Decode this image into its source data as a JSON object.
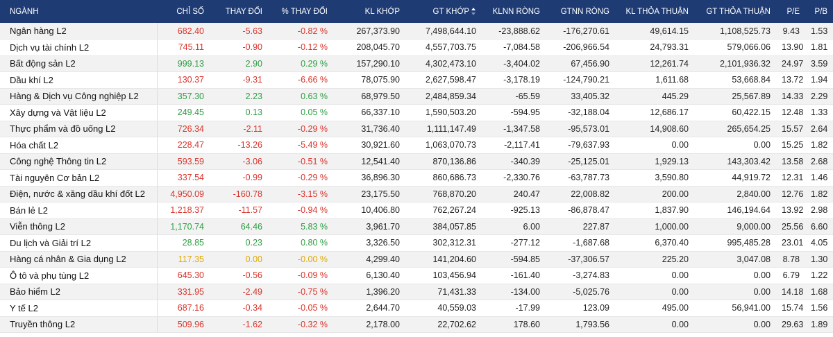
{
  "headers": {
    "nganh": "NGÀNH",
    "chi_so": "CHỈ SỐ",
    "thay_doi": "THAY ĐỔI",
    "pct_thay_doi": "% THAY ĐỔI",
    "kl_khop": "KL KHỚP",
    "gt_khop": "GT KHỚP",
    "kl_nn_rong": "KLNN RÒNG",
    "gt_nn_rong": "GTNN RÒNG",
    "kl_thoa_thuan": "KL THỎA THUẬN",
    "gt_thoa_thuan": "GT THỎA THUẬN",
    "pe": "P/E",
    "pb": "P/B",
    "sort_icon": "sort-desc-icon"
  },
  "colors": {
    "header_bg": "#1f3b73",
    "up": "#2e9e44",
    "down": "#d9342b",
    "reference": "#e0a800"
  },
  "rows": [
    {
      "name": "Ngân hàng L2",
      "trend": "down",
      "index": "682.40",
      "change": "-5.63",
      "pct": "-0.82 %",
      "kl_khop": "267,373.90",
      "gt_khop": "7,498,644.10",
      "kl_nn": "-23,888.62",
      "gt_nn": "-176,270.61",
      "kl_tt": "49,614.15",
      "gt_tt": "1,108,525.73",
      "pe": "9.43",
      "pb": "1.53"
    },
    {
      "name": "Dịch vụ tài chính L2",
      "trend": "down",
      "index": "745.11",
      "change": "-0.90",
      "pct": "-0.12 %",
      "kl_khop": "208,045.70",
      "gt_khop": "4,557,703.75",
      "kl_nn": "-7,084.58",
      "gt_nn": "-206,966.54",
      "kl_tt": "24,793.31",
      "gt_tt": "579,066.06",
      "pe": "13.90",
      "pb": "1.81"
    },
    {
      "name": "Bất động sản L2",
      "trend": "up",
      "index": "999.13",
      "change": "2.90",
      "pct": "0.29 %",
      "kl_khop": "157,290.10",
      "gt_khop": "4,302,473.10",
      "kl_nn": "-3,404.02",
      "gt_nn": "67,456.90",
      "kl_tt": "12,261.74",
      "gt_tt": "2,101,936.32",
      "pe": "24.97",
      "pb": "3.59"
    },
    {
      "name": "Dầu khí L2",
      "trend": "down",
      "index": "130.37",
      "change": "-9.31",
      "pct": "-6.66 %",
      "kl_khop": "78,075.90",
      "gt_khop": "2,627,598.47",
      "kl_nn": "-3,178.19",
      "gt_nn": "-124,790.21",
      "kl_tt": "1,611.68",
      "gt_tt": "53,668.84",
      "pe": "13.72",
      "pb": "1.94"
    },
    {
      "name": "Hàng & Dịch vụ Công nghiệp L2",
      "trend": "up",
      "index": "357.30",
      "change": "2.23",
      "pct": "0.63 %",
      "kl_khop": "68,979.50",
      "gt_khop": "2,484,859.34",
      "kl_nn": "-65.59",
      "gt_nn": "33,405.32",
      "kl_tt": "445.29",
      "gt_tt": "25,567.89",
      "pe": "14.33",
      "pb": "2.29"
    },
    {
      "name": "Xây dựng và Vật liệu L2",
      "trend": "up",
      "index": "249.45",
      "change": "0.13",
      "pct": "0.05 %",
      "kl_khop": "66,337.10",
      "gt_khop": "1,590,503.20",
      "kl_nn": "-594.95",
      "gt_nn": "-32,188.04",
      "kl_tt": "12,686.17",
      "gt_tt": "60,422.15",
      "pe": "12.48",
      "pb": "1.33"
    },
    {
      "name": "Thực phẩm và đồ uống L2",
      "trend": "down",
      "index": "726.34",
      "change": "-2.11",
      "pct": "-0.29 %",
      "kl_khop": "31,736.40",
      "gt_khop": "1,111,147.49",
      "kl_nn": "-1,347.58",
      "gt_nn": "-95,573.01",
      "kl_tt": "14,908.60",
      "gt_tt": "265,654.25",
      "pe": "15.57",
      "pb": "2.64"
    },
    {
      "name": "Hóa chất L2",
      "trend": "down",
      "index": "228.47",
      "change": "-13.26",
      "pct": "-5.49 %",
      "kl_khop": "30,921.60",
      "gt_khop": "1,063,070.73",
      "kl_nn": "-2,117.41",
      "gt_nn": "-79,637.93",
      "kl_tt": "0.00",
      "gt_tt": "0.00",
      "pe": "15.25",
      "pb": "1.82"
    },
    {
      "name": "Công nghệ Thông tin L2",
      "trend": "down",
      "index": "593.59",
      "change": "-3.06",
      "pct": "-0.51 %",
      "kl_khop": "12,541.40",
      "gt_khop": "870,136.86",
      "kl_nn": "-340.39",
      "gt_nn": "-25,125.01",
      "kl_tt": "1,929.13",
      "gt_tt": "143,303.42",
      "pe": "13.58",
      "pb": "2.68"
    },
    {
      "name": "Tài nguyên Cơ bản L2",
      "trend": "down",
      "index": "337.54",
      "change": "-0.99",
      "pct": "-0.29 %",
      "kl_khop": "36,896.30",
      "gt_khop": "860,686.73",
      "kl_nn": "-2,330.76",
      "gt_nn": "-63,787.73",
      "kl_tt": "3,590.80",
      "gt_tt": "44,919.72",
      "pe": "12.31",
      "pb": "1.46"
    },
    {
      "name": "Điện, nước & xăng dầu khí đốt L2",
      "trend": "down",
      "index": "4,950.09",
      "change": "-160.78",
      "pct": "-3.15 %",
      "kl_khop": "23,175.50",
      "gt_khop": "768,870.20",
      "kl_nn": "240.47",
      "gt_nn": "22,008.82",
      "kl_tt": "200.00",
      "gt_tt": "2,840.00",
      "pe": "12.76",
      "pb": "1.82"
    },
    {
      "name": "Bán lẻ L2",
      "trend": "down",
      "index": "1,218.37",
      "change": "-11.57",
      "pct": "-0.94 %",
      "kl_khop": "10,406.80",
      "gt_khop": "762,267.24",
      "kl_nn": "-925.13",
      "gt_nn": "-86,878.47",
      "kl_tt": "1,837.90",
      "gt_tt": "146,194.64",
      "pe": "13.92",
      "pb": "2.98"
    },
    {
      "name": "Viễn thông L2",
      "trend": "up",
      "index": "1,170.74",
      "change": "64.46",
      "pct": "5.83 %",
      "kl_khop": "3,961.70",
      "gt_khop": "384,057.85",
      "kl_nn": "6.00",
      "gt_nn": "227.87",
      "kl_tt": "1,000.00",
      "gt_tt": "9,000.00",
      "pe": "25.56",
      "pb": "6.60"
    },
    {
      "name": "Du lịch và Giải trí L2",
      "trend": "up",
      "index": "28.85",
      "change": "0.23",
      "pct": "0.80 %",
      "kl_khop": "3,326.50",
      "gt_khop": "302,312.31",
      "kl_nn": "-277.12",
      "gt_nn": "-1,687.68",
      "kl_tt": "6,370.40",
      "gt_tt": "995,485.28",
      "pe": "23.01",
      "pb": "4.05"
    },
    {
      "name": "Hàng cá nhân & Gia dụng L2",
      "trend": "ref",
      "index": "117.35",
      "change": "0.00",
      "pct": "-0.00 %",
      "kl_khop": "4,299.40",
      "gt_khop": "141,204.60",
      "kl_nn": "-594.85",
      "gt_nn": "-37,306.57",
      "kl_tt": "225.20",
      "gt_tt": "3,047.08",
      "pe": "8.78",
      "pb": "1.30"
    },
    {
      "name": "Ô tô và phụ tùng L2",
      "trend": "down",
      "index": "645.30",
      "change": "-0.56",
      "pct": "-0.09 %",
      "kl_khop": "6,130.40",
      "gt_khop": "103,456.94",
      "kl_nn": "-161.40",
      "gt_nn": "-3,274.83",
      "kl_tt": "0.00",
      "gt_tt": "0.00",
      "pe": "6.79",
      "pb": "1.22"
    },
    {
      "name": "Bảo hiểm L2",
      "trend": "down",
      "index": "331.95",
      "change": "-2.49",
      "pct": "-0.75 %",
      "kl_khop": "1,396.20",
      "gt_khop": "71,431.33",
      "kl_nn": "-134.00",
      "gt_nn": "-5,025.76",
      "kl_tt": "0.00",
      "gt_tt": "0.00",
      "pe": "14.18",
      "pb": "1.68"
    },
    {
      "name": "Y tế L2",
      "trend": "down",
      "index": "687.16",
      "change": "-0.34",
      "pct": "-0.05 %",
      "kl_khop": "2,644.70",
      "gt_khop": "40,559.03",
      "kl_nn": "-17.99",
      "gt_nn": "123.09",
      "kl_tt": "495.00",
      "gt_tt": "56,941.00",
      "pe": "15.74",
      "pb": "1.56"
    },
    {
      "name": "Truyền thông L2",
      "trend": "down",
      "index": "509.96",
      "change": "-1.62",
      "pct": "-0.32 %",
      "kl_khop": "2,178.00",
      "gt_khop": "22,702.62",
      "kl_nn": "178.60",
      "gt_nn": "1,793.56",
      "kl_tt": "0.00",
      "gt_tt": "0.00",
      "pe": "29.63",
      "pb": "1.89"
    }
  ]
}
